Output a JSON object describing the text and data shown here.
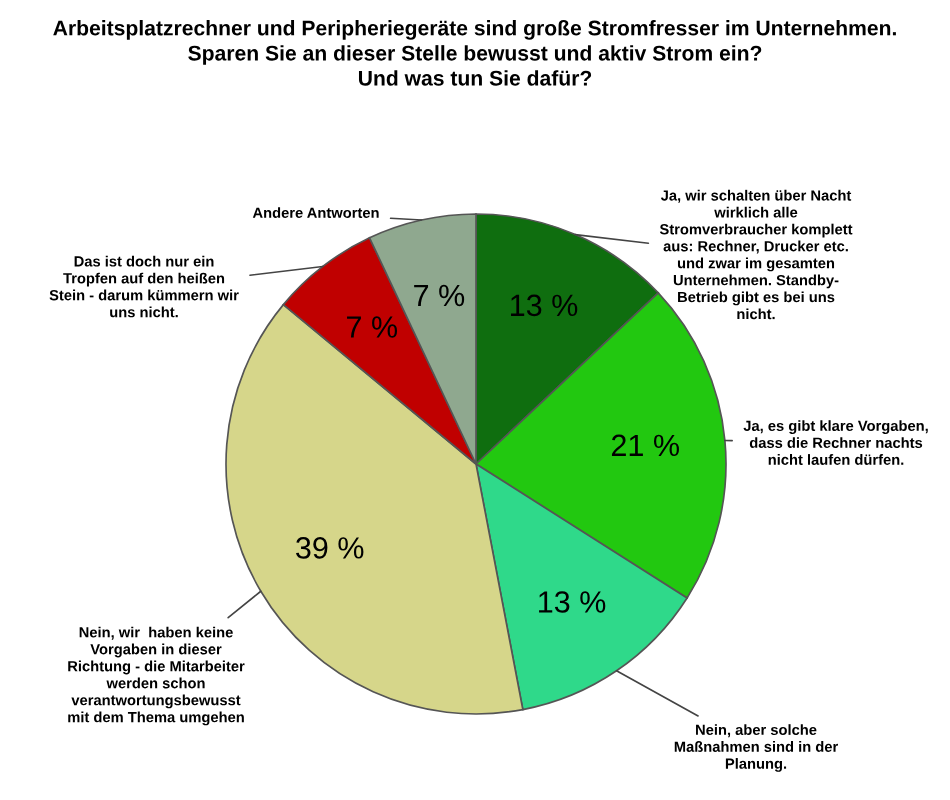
{
  "chart_data": {
    "type": "pie",
    "title": "Arbeitsplatzrechner und Peripheriegeräte sind große Stromfresser im Unternehmen.\nSparen Sie an dieser Stelle bewusst und aktiv Strom ein?\nUnd was tun Sie dafür?",
    "categories": [
      "Ja, wir schalten über Nacht\nwirklich alle\nStromverbraucher komplett\naus: Rechner, Drucker etc.\nund zwar im gesamten\nUnternehmen. Standby-\nBetrieb gibt es bei uns\nnicht.",
      "Ja, es gibt klare Vorgaben,\ndass die Rechner nachts\nnicht laufen dürfen.",
      "Nein, aber solche\nMaßnahmen sind in der\nPlanung.",
      "Nein, wir  haben keine\nVorgaben in dieser\nRichtung - die Mitarbeiter\nwerden schon\nverantwortungsbewusst\nmit dem Thema umgehen",
      "Das ist doch nur ein\nTropfen auf den heißen\nStein - darum kümmern wir\nuns nicht.",
      "Andere Antworten"
    ],
    "values": [
      13,
      21,
      13,
      39,
      7,
      7
    ],
    "value_labels": [
      "13 %",
      "21 %",
      "13 %",
      "39 %",
      "7 %",
      "7 %"
    ],
    "colors": [
      "#0f6e0f",
      "#22c810",
      "#2fd98a",
      "#d6d68a",
      "#c00000",
      "#8fa88f"
    ]
  }
}
